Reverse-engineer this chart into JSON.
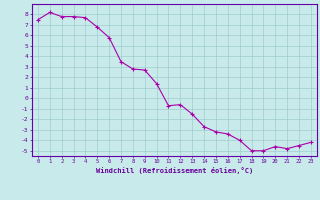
{
  "xlabel": "Windchill (Refroidissement éolien,°C)",
  "ylabel": "",
  "x_values": [
    0,
    1,
    2,
    3,
    4,
    5,
    6,
    7,
    8,
    9,
    10,
    11,
    12,
    13,
    14,
    15,
    16,
    17,
    18,
    19,
    20,
    21,
    22,
    23
  ],
  "y_values": [
    7.5,
    8.2,
    7.8,
    7.8,
    7.7,
    6.8,
    5.8,
    3.5,
    2.8,
    2.7,
    1.4,
    -0.7,
    -0.6,
    -1.5,
    -2.7,
    -3.2,
    -3.4,
    -4.0,
    -5.0,
    -5.0,
    -4.6,
    -4.8,
    -4.5,
    -4.2
  ],
  "line_color": "#aa00aa",
  "marker_color": "#aa00aa",
  "bg_color": "#c8eaea",
  "grid_color": "#a0cccc",
  "axis_color": "#6600aa",
  "tick_label_color": "#660099",
  "ylim": [
    -5.5,
    9.0
  ],
  "xlim": [
    -0.5,
    23.5
  ],
  "yticks": [
    -5,
    -4,
    -3,
    -2,
    -1,
    0,
    1,
    2,
    3,
    4,
    5,
    6,
    7,
    8
  ],
  "xticks": [
    0,
    1,
    2,
    3,
    4,
    5,
    6,
    7,
    8,
    9,
    10,
    11,
    12,
    13,
    14,
    15,
    16,
    17,
    18,
    19,
    20,
    21,
    22,
    23
  ]
}
